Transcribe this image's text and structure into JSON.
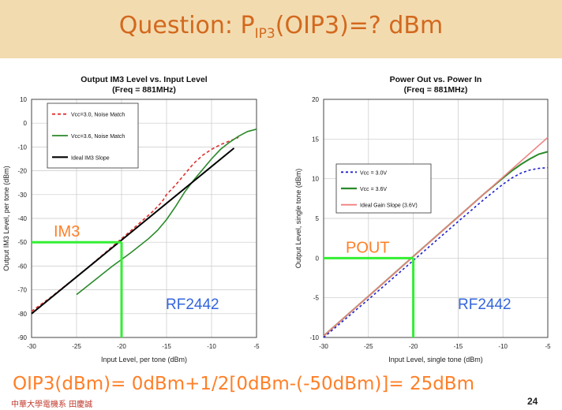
{
  "slide": {
    "title_prefix": "Question: P",
    "title_sub": "IP3",
    "title_suffix": "(OIP3)=? dBm",
    "formula": "OIP3(dBm)= 0dBm+1/2[0dBm-(-50dBm)]= 25dBm",
    "footer": "中華大學電機系 田慶誠",
    "page_number": "24",
    "accent_color": "#ff7f27",
    "guide_color": "#33ee33",
    "rf_label_color": "#3366dd"
  },
  "chart_data": [
    {
      "type": "line",
      "title": "Output IM3 Level vs. Input Level",
      "subtitle": "(Freq = 881MHz)",
      "xlabel": "Input Level, per tone (dBm)",
      "ylabel": "Output IM3 Level, per tone (dBm)",
      "xlim": [
        -30,
        -5
      ],
      "ylim": [
        -90,
        10
      ],
      "xticks": [
        -30,
        -25,
        -20,
        -15,
        -10,
        -5
      ],
      "yticks": [
        10,
        0,
        -10,
        -20,
        -30,
        -40,
        -50,
        -60,
        -70,
        -80,
        -90
      ],
      "grid": true,
      "legend_position": "top-left",
      "series": [
        {
          "name": "Vcc=3.0, Noise Match",
          "color": "#e03030",
          "dash": "4,3",
          "x": [
            -30,
            -28,
            -26,
            -24,
            -22,
            -20,
            -18,
            -16.5,
            -15.5,
            -15,
            -14,
            -13,
            -12,
            -11,
            -10,
            -9,
            -8,
            -7
          ],
          "y": [
            -79,
            -73.5,
            -67.5,
            -61.5,
            -55,
            -48.5,
            -42,
            -37,
            -33,
            -30,
            -26,
            -21.5,
            -17,
            -13.5,
            -11,
            -9,
            -7.5,
            -6
          ]
        },
        {
          "name": "Vcc=3.6, Noise Match",
          "color": "#2a8a2a",
          "x": [
            -25,
            -23,
            -21,
            -19,
            -17,
            -16,
            -15,
            -14,
            -13,
            -12,
            -11,
            -10,
            -9,
            -8,
            -7,
            -6,
            -5
          ],
          "y": [
            -72,
            -66,
            -60,
            -54.5,
            -48.5,
            -45,
            -40.5,
            -35,
            -29,
            -24,
            -19.5,
            -15,
            -11,
            -8,
            -5.5,
            -3.5,
            -2.5
          ]
        },
        {
          "name": "Ideal IM3 Slope",
          "color": "#000000",
          "width": 2,
          "x": [
            -30,
            -7.5
          ],
          "y": [
            -80,
            -10.5
          ]
        }
      ],
      "annotations": {
        "signal_label": "IM3",
        "device_label": "RF2442",
        "guide_level": -50,
        "guide_input": -20
      }
    },
    {
      "type": "line",
      "title": "Power Out vs. Power In",
      "subtitle": "(Freq = 881MHz)",
      "xlabel": "Input Level, single tone (dBm)",
      "ylabel": "Output Level, single tone (dBm)",
      "xlim": [
        -30,
        -5
      ],
      "ylim": [
        -10,
        20
      ],
      "xticks": [
        -30,
        -25,
        -20,
        -15,
        -10,
        -5
      ],
      "yticks": [
        20,
        15,
        10,
        5,
        0,
        -5,
        -10
      ],
      "grid": true,
      "legend_position": "center-left",
      "series": [
        {
          "name": "Vcc = 3.0V",
          "color": "#1f1fd0",
          "dash": "3,3",
          "x": [
            -30,
            -25,
            -20,
            -15,
            -12,
            -10,
            -9,
            -8,
            -7,
            -6,
            -5
          ],
          "y": [
            -10,
            -5.2,
            -0.3,
            4.6,
            7.5,
            9.3,
            10.1,
            10.7,
            11.1,
            11.3,
            11.4
          ]
        },
        {
          "name": "Vcc = 3.6V",
          "color": "#2a8a2a",
          "width": 2,
          "x": [
            -30,
            -25,
            -20,
            -15,
            -12,
            -10,
            -9,
            -8,
            -7,
            -6,
            -5
          ],
          "y": [
            -9.8,
            -4.8,
            0.2,
            5.2,
            8.2,
            10.1,
            11,
            11.8,
            12.5,
            13.1,
            13.4
          ]
        },
        {
          "name": "Ideal Gain Slope (3.6V)",
          "color": "#f08080",
          "x": [
            -30,
            -5
          ],
          "y": [
            -9.8,
            15.2
          ]
        }
      ],
      "annotations": {
        "signal_label": "POUT",
        "device_label": "RF2442",
        "guide_level": 0,
        "guide_input": -20
      }
    }
  ]
}
